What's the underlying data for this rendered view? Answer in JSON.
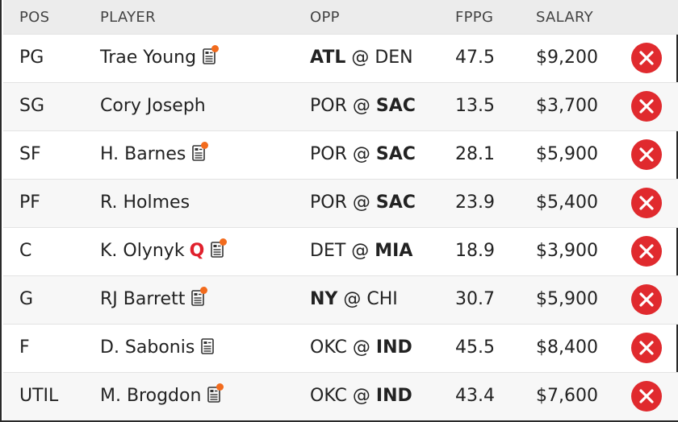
{
  "header": {
    "pos": "POS",
    "player": "PLAYER",
    "opp": "OPP",
    "fppg": "FPPG",
    "salary": "SALARY"
  },
  "colors": {
    "remove_button": "#e02a2e",
    "news_dot": "#f26b1d",
    "questionable": "#e0202c",
    "header_bg": "#ececec"
  },
  "rows": [
    {
      "pos": "PG",
      "player": "Trae Young",
      "status": "",
      "news_icon": "notes-icon",
      "news_alert": true,
      "opp_away": "ATL",
      "opp_sep": "@",
      "opp_home": "DEN",
      "opp_bold": "away",
      "fppg": "47.5",
      "salary": "$9,200"
    },
    {
      "pos": "SG",
      "player": "Cory Joseph",
      "status": "",
      "news_icon": "",
      "news_alert": false,
      "opp_away": "POR",
      "opp_sep": "@",
      "opp_home": "SAC",
      "opp_bold": "home",
      "fppg": "13.5",
      "salary": "$3,700"
    },
    {
      "pos": "SF",
      "player": "H. Barnes",
      "status": "",
      "news_icon": "notes-icon",
      "news_alert": true,
      "opp_away": "POR",
      "opp_sep": "@",
      "opp_home": "SAC",
      "opp_bold": "home",
      "fppg": "28.1",
      "salary": "$5,900"
    },
    {
      "pos": "PF",
      "player": "R. Holmes",
      "status": "",
      "news_icon": "",
      "news_alert": false,
      "opp_away": "POR",
      "opp_sep": "@",
      "opp_home": "SAC",
      "opp_bold": "home",
      "fppg": "23.9",
      "salary": "$5,400"
    },
    {
      "pos": "C",
      "player": "K. Olynyk",
      "status": "Q",
      "news_icon": "notes-icon",
      "news_alert": true,
      "opp_away": "DET",
      "opp_sep": "@",
      "opp_home": "MIA",
      "opp_bold": "home",
      "fppg": "18.9",
      "salary": "$3,900"
    },
    {
      "pos": "G",
      "player": "RJ Barrett",
      "status": "",
      "news_icon": "notes-icon",
      "news_alert": true,
      "opp_away": "NY",
      "opp_sep": "@",
      "opp_home": "CHI",
      "opp_bold": "away",
      "fppg": "30.7",
      "salary": "$5,900"
    },
    {
      "pos": "F",
      "player": "D. Sabonis",
      "status": "",
      "news_icon": "notes-icon",
      "news_alert": false,
      "opp_away": "OKC",
      "opp_sep": "@",
      "opp_home": "IND",
      "opp_bold": "home",
      "fppg": "45.5",
      "salary": "$8,400"
    },
    {
      "pos": "UTIL",
      "player": "M. Brogdon",
      "status": "",
      "news_icon": "notes-icon",
      "news_alert": true,
      "opp_away": "OKC",
      "opp_sep": "@",
      "opp_home": "IND",
      "opp_bold": "home",
      "fppg": "43.4",
      "salary": "$7,600"
    }
  ]
}
